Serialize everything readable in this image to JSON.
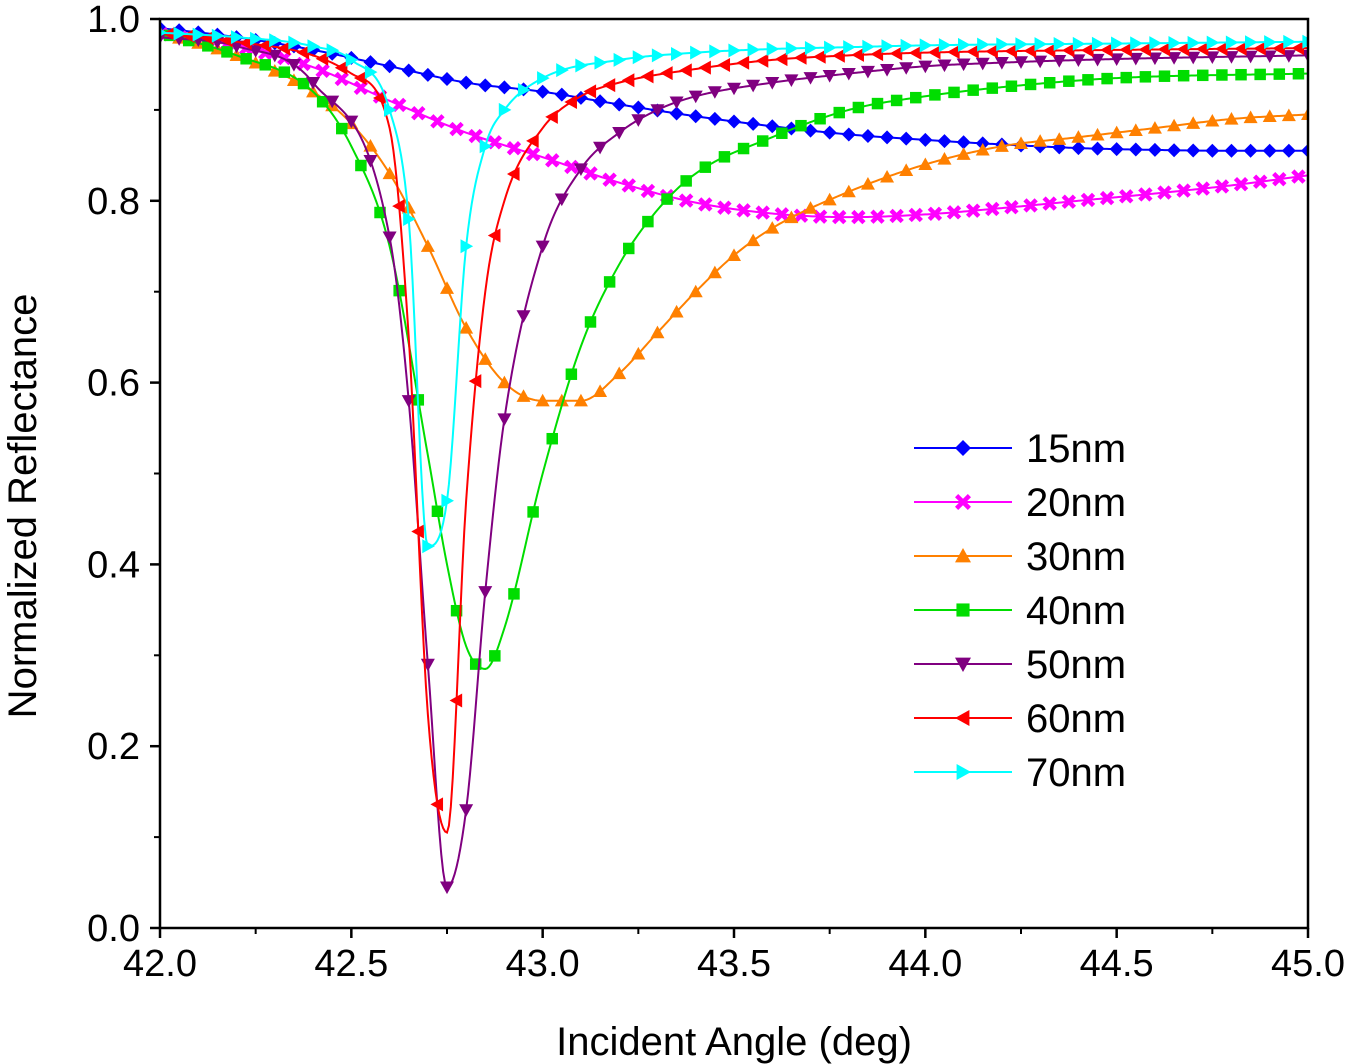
{
  "chart_data": {
    "type": "line",
    "title": "",
    "xlabel": "Incident Angle (deg)",
    "ylabel": "Normalized Reflectance",
    "xlim": [
      42.0,
      45.0
    ],
    "ylim": [
      0.0,
      1.0
    ],
    "xticks": [
      42.0,
      42.5,
      43.0,
      43.5,
      44.0,
      44.5,
      45.0
    ],
    "xtick_labels": [
      "42.0",
      "42.5",
      "43.0",
      "43.5",
      "44.0",
      "44.5",
      "45.0"
    ],
    "yticks": [
      0.0,
      0.2,
      0.4,
      0.6,
      0.8,
      1.0
    ],
    "ytick_labels": [
      "0.0",
      "0.2",
      "0.4",
      "0.6",
      "0.8",
      "1.0"
    ],
    "grid": false,
    "legend_position": "center-right",
    "series": [
      {
        "name": "15nm",
        "color": "#0000ff",
        "marker": "diamond",
        "x": [
          42.0,
          42.2,
          42.4,
          42.6,
          42.8,
          43.0,
          43.2,
          43.4,
          43.6,
          43.8,
          44.0,
          44.2,
          44.4,
          44.6,
          44.8,
          45.0
        ],
        "y": [
          0.99,
          0.98,
          0.966,
          0.948,
          0.93,
          0.92,
          0.906,
          0.893,
          0.882,
          0.873,
          0.867,
          0.862,
          0.858,
          0.856,
          0.855,
          0.855
        ]
      },
      {
        "name": "20nm",
        "color": "#ff00ff",
        "marker": "x",
        "x": [
          42.0,
          42.2,
          42.4,
          42.6,
          42.8,
          43.0,
          43.2,
          43.4,
          43.6,
          43.8,
          44.0,
          44.2,
          44.4,
          44.6,
          44.8,
          45.0
        ],
        "y": [
          0.985,
          0.97,
          0.947,
          0.91,
          0.875,
          0.848,
          0.82,
          0.798,
          0.786,
          0.782,
          0.785,
          0.792,
          0.8,
          0.808,
          0.817,
          0.828
        ]
      },
      {
        "name": "30nm",
        "color": "#ff8000",
        "marker": "triangle-up",
        "x": [
          42.0,
          42.2,
          42.4,
          42.5,
          42.6,
          42.7,
          42.8,
          42.9,
          43.0,
          43.1,
          43.2,
          43.3,
          43.4,
          43.5,
          43.6,
          43.8,
          44.0,
          44.2,
          44.4,
          44.6,
          44.8,
          45.0
        ],
        "y": [
          0.985,
          0.96,
          0.92,
          0.885,
          0.83,
          0.75,
          0.66,
          0.6,
          0.58,
          0.58,
          0.61,
          0.655,
          0.7,
          0.74,
          0.77,
          0.81,
          0.84,
          0.86,
          0.87,
          0.88,
          0.89,
          0.895
        ]
      },
      {
        "name": "40nm",
        "color": "#00dd00",
        "marker": "square",
        "x": [
          42.0,
          42.2,
          42.4,
          42.5,
          42.6,
          42.7,
          42.75,
          42.8,
          42.85,
          42.9,
          43.0,
          43.1,
          43.2,
          43.3,
          43.4,
          43.6,
          43.8,
          44.0,
          44.2,
          44.5,
          45.0
        ],
        "y": [
          0.985,
          0.96,
          0.92,
          0.86,
          0.75,
          0.52,
          0.4,
          0.31,
          0.285,
          0.33,
          0.5,
          0.64,
          0.73,
          0.79,
          0.83,
          0.87,
          0.9,
          0.915,
          0.925,
          0.935,
          0.94
        ]
      },
      {
        "name": "50nm",
        "color": "#800080",
        "marker": "triangle-down",
        "x": [
          42.0,
          42.2,
          42.4,
          42.6,
          42.65,
          42.7,
          42.75,
          42.8,
          42.85,
          42.9,
          43.0,
          43.1,
          43.2,
          43.3,
          43.4,
          43.6,
          43.8,
          44.0,
          44.2,
          44.5,
          45.0
        ],
        "y": [
          0.98,
          0.97,
          0.93,
          0.76,
          0.58,
          0.29,
          0.045,
          0.13,
          0.37,
          0.56,
          0.75,
          0.835,
          0.875,
          0.9,
          0.915,
          0.93,
          0.94,
          0.948,
          0.952,
          0.956,
          0.96
        ]
      },
      {
        "name": "60nm",
        "color": "#ff0000",
        "marker": "triangle-left",
        "x": [
          42.0,
          42.2,
          42.4,
          42.5,
          42.6,
          42.65,
          42.7,
          42.75,
          42.8,
          42.85,
          42.9,
          43.0,
          43.1,
          43.2,
          43.4,
          43.6,
          43.8,
          44.0,
          44.5,
          45.0
        ],
        "y": [
          0.985,
          0.975,
          0.96,
          0.94,
          0.88,
          0.65,
          0.235,
          0.105,
          0.47,
          0.7,
          0.8,
          0.88,
          0.915,
          0.93,
          0.945,
          0.955,
          0.96,
          0.963,
          0.966,
          0.968
        ]
      },
      {
        "name": "70nm",
        "color": "#00ffff",
        "marker": "triangle-right",
        "x": [
          42.0,
          42.2,
          42.4,
          42.5,
          42.6,
          42.65,
          42.7,
          42.75,
          42.8,
          42.85,
          42.9,
          43.0,
          43.2,
          43.4,
          43.6,
          43.8,
          44.0,
          44.5,
          45.0
        ],
        "y": [
          0.985,
          0.98,
          0.97,
          0.955,
          0.9,
          0.78,
          0.42,
          0.47,
          0.75,
          0.86,
          0.9,
          0.935,
          0.955,
          0.963,
          0.967,
          0.969,
          0.971,
          0.973,
          0.975
        ]
      }
    ]
  }
}
